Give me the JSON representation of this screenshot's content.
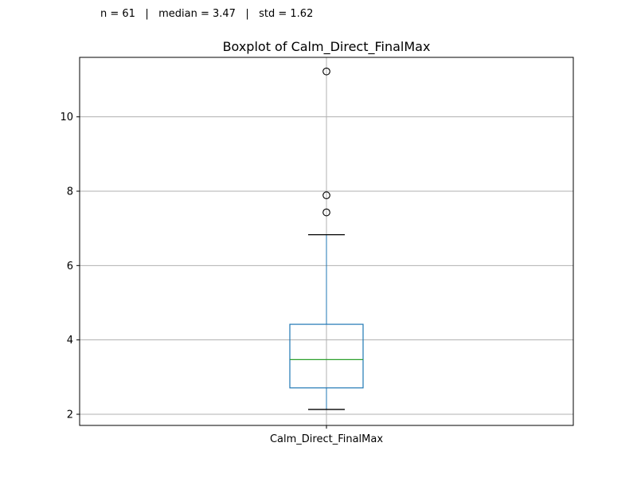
{
  "stats_line": "n = 61   |   median = 3.47   |   std = 1.62",
  "chart_data": {
    "type": "box",
    "title": "Boxplot of Calm_Direct_FinalMax",
    "categories": [
      "Calm_Direct_FinalMax"
    ],
    "ylim": [
      1.7,
      11.6
    ],
    "yticks": [
      2,
      4,
      6,
      8,
      10
    ],
    "grid": true,
    "boxes": [
      {
        "name": "Calm_Direct_FinalMax",
        "whisker_low": 2.13,
        "q1": 2.71,
        "median": 3.47,
        "q3": 4.42,
        "whisker_high": 6.83,
        "outliers": [
          7.43,
          7.89,
          11.22
        ]
      }
    ],
    "colors": {
      "box": "#1f77b4",
      "median": "#2ca02c",
      "whisker_cap": "#000000",
      "grid": "#b0b0b0"
    }
  }
}
